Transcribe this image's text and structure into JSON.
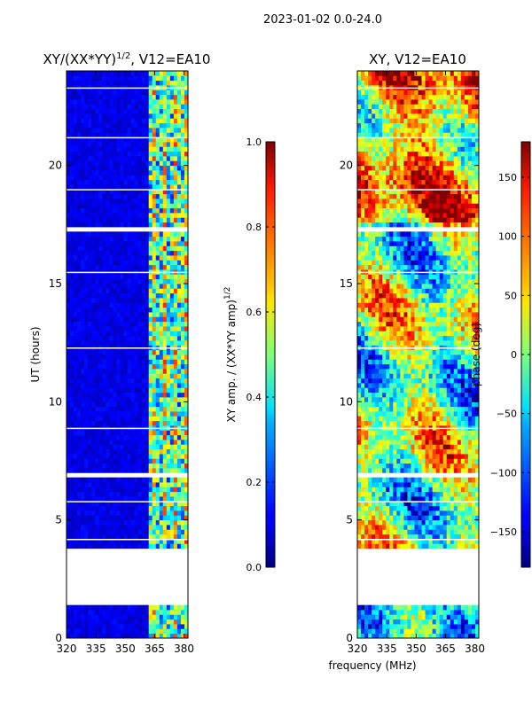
{
  "suptitle": "2023-01-02 0.0-24.0",
  "chart_data": [
    {
      "type": "heatmap",
      "title": "XY/(XX*YY)",
      "title_exponent": "1/2",
      "title_suffix": ", V12=EA10",
      "xlabel": "",
      "ylabel": "UT (hours)",
      "xlim": [
        320,
        382
      ],
      "ylim": [
        0,
        24
      ],
      "xticks": [
        "320",
        "335",
        "350",
        "365",
        "380"
      ],
      "xtick_values": [
        320,
        335,
        350,
        365,
        380
      ],
      "yticks": [
        "0",
        "5",
        "10",
        "15",
        "20"
      ],
      "ytick_values": [
        0,
        5,
        10,
        15,
        20
      ],
      "data_gaps_hours": [
        [
          1.4,
          3.9
        ],
        [
          17.2,
          17.5
        ],
        [
          6.9,
          7.1
        ]
      ],
      "colorbar": {
        "label": "XY amp. / (XX*YY amp)",
        "label_exponent": "1/2",
        "range": [
          0.0,
          1.0
        ],
        "ticks": [
          "0.0",
          "0.2",
          "0.4",
          "0.6",
          "0.8",
          "1.0"
        ],
        "tick_values": [
          0.0,
          0.2,
          0.4,
          0.6,
          0.8,
          1.0
        ],
        "colormap": "jet"
      }
    },
    {
      "type": "heatmap",
      "title": "XY, V12=EA10",
      "xlabel": "frequency (MHz)",
      "ylabel": "",
      "xlim": [
        320,
        382
      ],
      "ylim": [
        0,
        24
      ],
      "xticks": [
        "320",
        "335",
        "350",
        "365",
        "380"
      ],
      "xtick_values": [
        320,
        335,
        350,
        365,
        380
      ],
      "yticks": [
        "0",
        "5",
        "10",
        "15",
        "20"
      ],
      "ytick_values": [
        0,
        5,
        10,
        15,
        20
      ],
      "data_gaps_hours": [
        [
          1.4,
          3.9
        ],
        [
          17.2,
          17.5
        ],
        [
          6.9,
          7.1
        ]
      ],
      "colorbar": {
        "label": "phase (deg)",
        "range": [
          -180,
          180
        ],
        "ticks": [
          "−150",
          "−100",
          "−50",
          "0",
          "50",
          "100",
          "150"
        ],
        "tick_values": [
          -150,
          -100,
          -50,
          0,
          50,
          100,
          150
        ],
        "colormap": "jet"
      }
    }
  ]
}
